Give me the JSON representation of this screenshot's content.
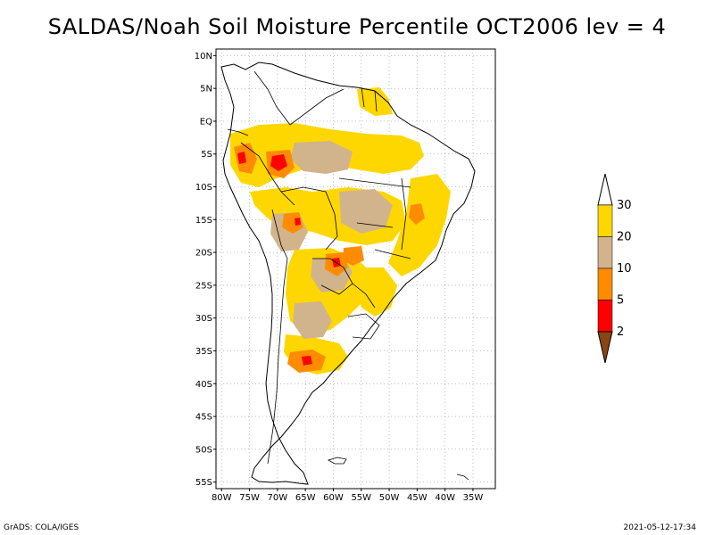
{
  "title": "SALDAS/Noah Soil Moisture Percentile OCT2006 lev = 4",
  "footer": {
    "left": "GrADS: COLA/IGES",
    "right": "2021-05-12-17:34"
  },
  "map": {
    "lon_range": [
      -81,
      -31
    ],
    "lat_range": [
      -56,
      11
    ],
    "lat_ticks": [
      "10N",
      "5N",
      "EQ",
      "5S",
      "10S",
      "15S",
      "20S",
      "25S",
      "30S",
      "35S",
      "40S",
      "45S",
      "50S",
      "55S"
    ],
    "lat_values": [
      10,
      5,
      0,
      -5,
      -10,
      -15,
      -20,
      -25,
      -30,
      -35,
      -40,
      -45,
      -50,
      -55
    ],
    "lon_ticks": [
      "80W",
      "75W",
      "70W",
      "65W",
      "60W",
      "55W",
      "50W",
      "45W",
      "40W",
      "35W"
    ],
    "lon_values": [
      -80,
      -75,
      -70,
      -65,
      -60,
      -55,
      -50,
      -45,
      -40,
      -35
    ],
    "grid": true,
    "grid_style": "dotted"
  },
  "legend": {
    "placement": "right",
    "bins": [
      {
        "range": "<2",
        "color": "#8B4513"
      },
      {
        "range": "2-5",
        "color": "#FF0000"
      },
      {
        "range": "5-10",
        "color": "#FF8C00"
      },
      {
        "range": "10-20",
        "color": "#D2B48C"
      },
      {
        "range": "20-30",
        "color": "#FFD700"
      },
      {
        "range": ">30",
        "color": "#FFFFFF"
      }
    ],
    "labels": [
      "2",
      "5",
      "10",
      "20",
      "30"
    ]
  }
}
